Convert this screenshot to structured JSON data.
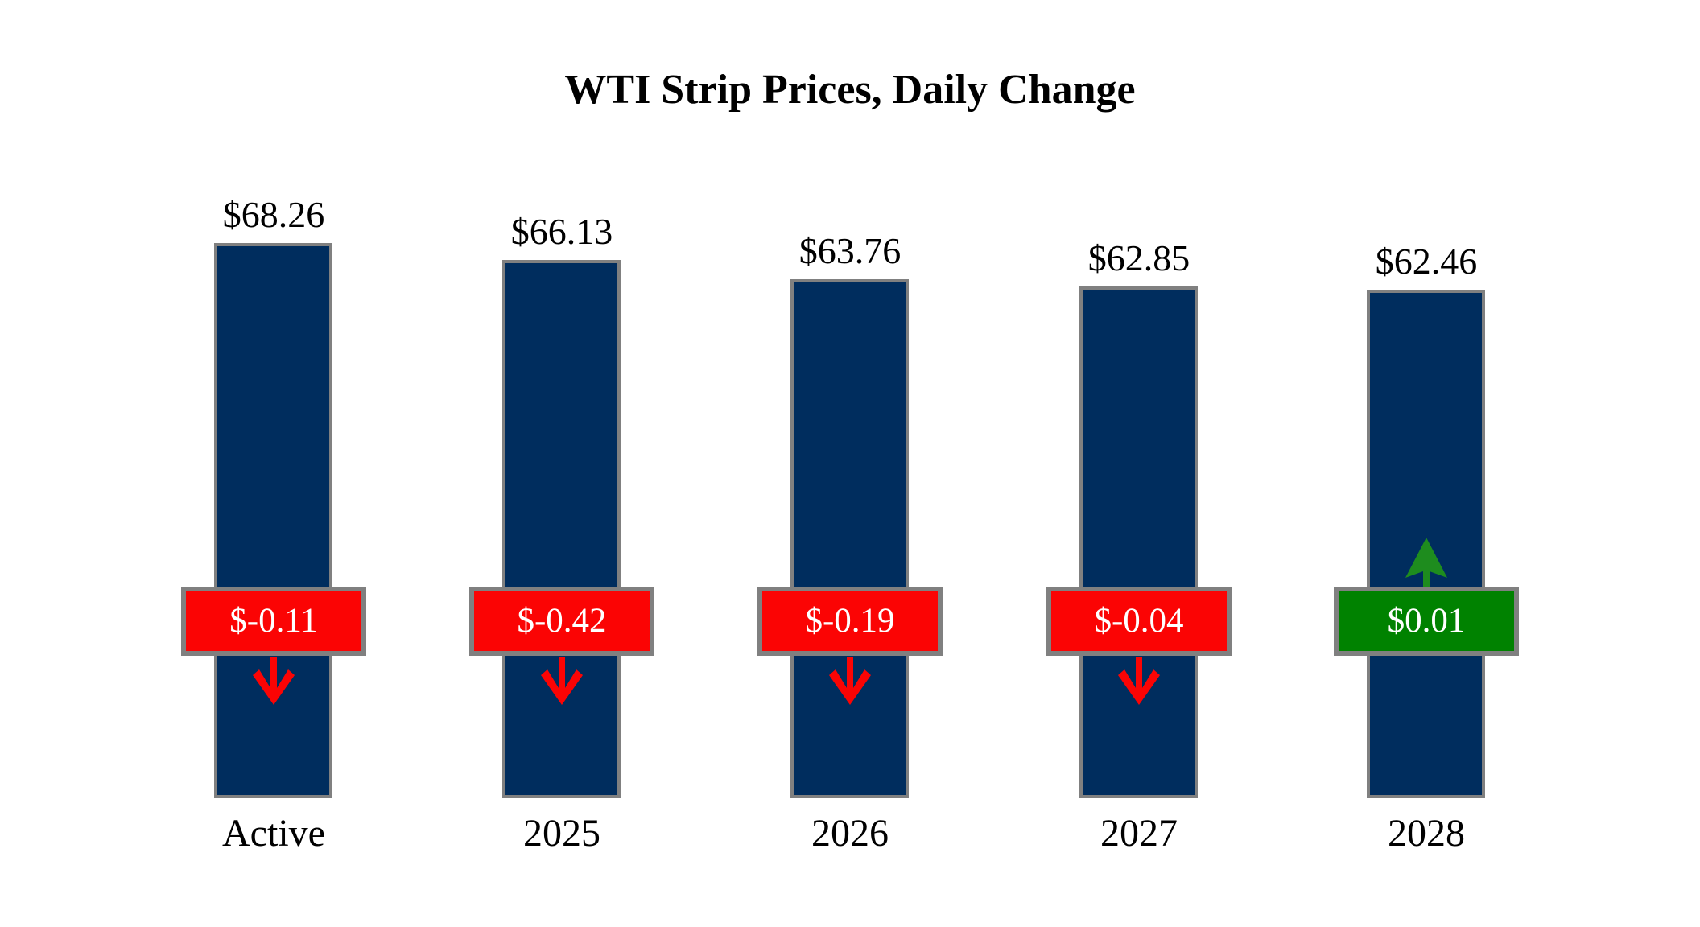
{
  "chart_data": {
    "type": "bar",
    "title": "WTI Strip Prices, Daily Change",
    "categories": [
      "Active",
      "2025",
      "2026",
      "2027",
      "2028"
    ],
    "series": [
      {
        "name": "strip_price_usd",
        "values": [
          68.26,
          66.13,
          63.76,
          62.85,
          62.46
        ]
      },
      {
        "name": "daily_change_usd",
        "values": [
          -0.11,
          -0.42,
          -0.19,
          -0.04,
          0.01
        ]
      }
    ],
    "bars": [
      {
        "category": "Active",
        "price": 68.26,
        "price_label": "$68.26",
        "change": -0.11,
        "change_label": "$-0.11",
        "direction": "down"
      },
      {
        "category": "2025",
        "price": 66.13,
        "price_label": "$66.13",
        "change": -0.42,
        "change_label": "$-0.42",
        "direction": "down"
      },
      {
        "category": "2026",
        "price": 63.76,
        "price_label": "$63.76",
        "change": -0.19,
        "change_label": "$-0.19",
        "direction": "down"
      },
      {
        "category": "2027",
        "price": 62.85,
        "price_label": "$62.85",
        "change": -0.04,
        "change_label": "$-0.04",
        "direction": "down"
      },
      {
        "category": "2028",
        "price": 62.46,
        "price_label": "$62.46",
        "change": 0.01,
        "change_label": "$0.01",
        "direction": "up"
      }
    ],
    "legend": "none",
    "grid": false,
    "axes_visible": false,
    "colors": {
      "background": "#FFFFFF",
      "bar_fill": "#002D5E",
      "bar_border": "#808080",
      "badge_border": "#808080",
      "badge_text": "#FFFFFF",
      "decrease": "#FB0404",
      "increase": "#008200",
      "increase_arrow": "#1E8C1E",
      "title_text": "#000000",
      "label_text": "#000000"
    }
  }
}
